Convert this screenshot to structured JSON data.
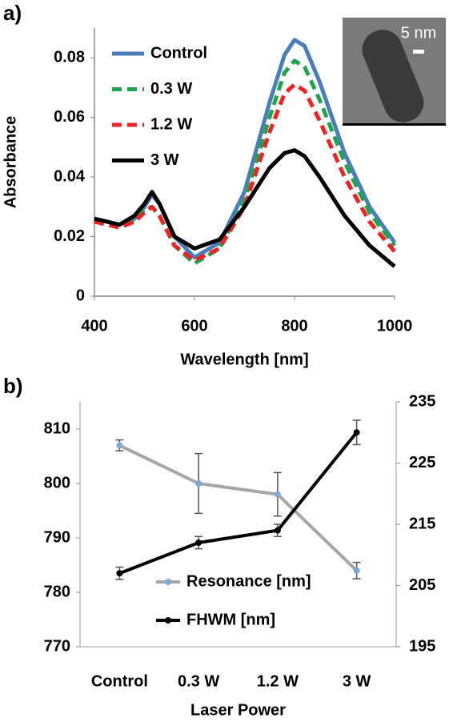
{
  "chart_data": [
    {
      "type": "line",
      "panel_label": "a)",
      "x_label": "Wavelength [nm]",
      "y_label": "Absorbance",
      "x": [
        400,
        450,
        480,
        500,
        515,
        530,
        560,
        600,
        650,
        700,
        750,
        780,
        800,
        820,
        850,
        900,
        950,
        1000
      ],
      "xlim": [
        400,
        1000
      ],
      "xticks": [
        400,
        600,
        800,
        1000
      ],
      "ylim": [
        0,
        0.09
      ],
      "yticks": [
        0,
        0.02,
        0.04,
        0.06,
        0.08
      ],
      "series": [
        {
          "name": "Control",
          "color": "#4a7ebb",
          "linestyle": "solid",
          "values": [
            0.026,
            0.024,
            0.026,
            0.03,
            0.034,
            0.031,
            0.02,
            0.013,
            0.018,
            0.035,
            0.065,
            0.081,
            0.086,
            0.084,
            0.072,
            0.048,
            0.03,
            0.018
          ]
        },
        {
          "name": "0.3 W",
          "color": "#1fa64a",
          "linestyle": "dashed",
          "values": [
            0.025,
            0.024,
            0.025,
            0.029,
            0.03,
            0.027,
            0.017,
            0.011,
            0.016,
            0.032,
            0.06,
            0.075,
            0.079,
            0.077,
            0.066,
            0.045,
            0.028,
            0.017
          ]
        },
        {
          "name": "1.2 W",
          "color": "#ee2222",
          "linestyle": "dashed",
          "values": [
            0.025,
            0.023,
            0.025,
            0.028,
            0.03,
            0.027,
            0.017,
            0.012,
            0.016,
            0.03,
            0.055,
            0.068,
            0.071,
            0.069,
            0.059,
            0.04,
            0.025,
            0.015
          ]
        },
        {
          "name": "3 W",
          "color": "#000000",
          "linestyle": "solid",
          "values": [
            0.026,
            0.024,
            0.027,
            0.031,
            0.035,
            0.031,
            0.02,
            0.016,
            0.019,
            0.03,
            0.043,
            0.048,
            0.049,
            0.047,
            0.04,
            0.027,
            0.017,
            0.01
          ]
        }
      ],
      "inset_scale_label": "5 nm"
    },
    {
      "type": "line",
      "panel_label": "b)",
      "x_label": "Laser Power",
      "categories": [
        "Control",
        "0.3 W",
        "1.2 W",
        "3 W"
      ],
      "ylim": [
        770,
        815
      ],
      "yticks": [
        770,
        780,
        790,
        800,
        810
      ],
      "y2lim": [
        195,
        235
      ],
      "y2ticks": [
        195,
        205,
        215,
        225,
        235
      ],
      "series": [
        {
          "name": "Resonance [nm]",
          "color": "#a6a6a6",
          "marker_color": "#7fa7d8",
          "values": [
            807,
            800,
            798,
            784
          ],
          "errors": [
            1,
            5.5,
            4,
            1.5
          ]
        },
        {
          "name": "FHWM [nm]",
          "color": "#000000",
          "marker_color": "#000000",
          "axis": "y2",
          "values": [
            207,
            212,
            214,
            230
          ],
          "errors": [
            1,
            1,
            1,
            2
          ]
        }
      ]
    }
  ]
}
